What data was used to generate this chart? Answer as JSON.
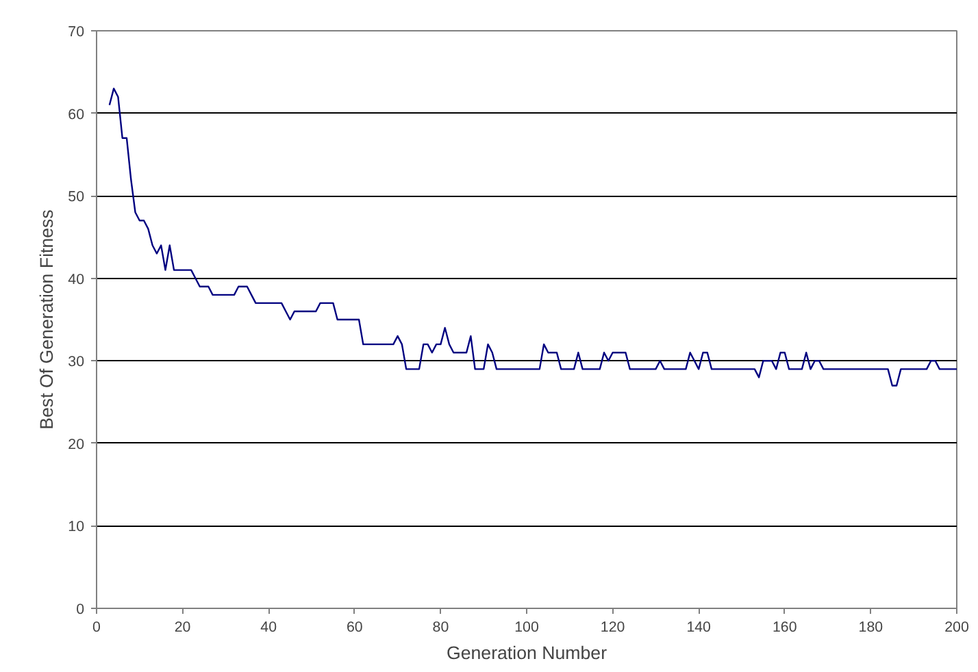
{
  "chart_data": {
    "type": "line",
    "xlabel": "Generation Number",
    "ylabel": "Best Of Generation Fitness",
    "xlim": [
      0,
      200
    ],
    "ylim": [
      0,
      70
    ],
    "xticks": [
      0,
      20,
      40,
      60,
      80,
      100,
      120,
      140,
      160,
      180,
      200
    ],
    "yticks": [
      0,
      10,
      20,
      30,
      40,
      50,
      60,
      70
    ],
    "grid": "y",
    "marker": "none",
    "line_style": "solid",
    "series": [
      {
        "color": "#000080",
        "x": [
          3,
          4,
          5,
          6,
          7,
          8,
          9,
          10,
          11,
          12,
          13,
          14,
          15,
          16,
          17,
          18,
          19,
          22,
          23,
          24,
          25,
          26,
          27,
          32,
          33,
          35,
          36,
          37,
          43,
          44,
          45,
          46,
          51,
          52,
          55,
          56,
          61,
          62,
          69,
          70,
          71,
          72,
          75,
          76,
          77,
          78,
          79,
          80,
          81,
          82,
          83,
          86,
          87,
          88,
          90,
          91,
          92,
          93,
          103,
          104,
          105,
          107,
          108,
          111,
          112,
          113,
          117,
          118,
          119,
          120,
          123,
          124,
          130,
          131,
          132,
          137,
          138,
          139,
          140,
          141,
          142,
          143,
          153,
          154,
          155,
          157,
          158,
          159,
          160,
          161,
          164,
          165,
          166,
          167,
          168,
          169,
          184,
          185,
          186,
          187,
          193,
          194,
          195,
          196,
          200
        ],
        "values": [
          61,
          63,
          62,
          57,
          57,
          52,
          48,
          47,
          47,
          46,
          44,
          43,
          44,
          41,
          44,
          41,
          41,
          41,
          40,
          39,
          39,
          39,
          38,
          38,
          39,
          39,
          38,
          37,
          37,
          36,
          35,
          36,
          36,
          37,
          37,
          35,
          35,
          32,
          32,
          33,
          32,
          29,
          29,
          32,
          32,
          31,
          32,
          32,
          34,
          32,
          31,
          31,
          33,
          29,
          29,
          32,
          31,
          29,
          29,
          32,
          31,
          31,
          29,
          29,
          31,
          29,
          29,
          31,
          30,
          31,
          31,
          29,
          29,
          30,
          29,
          29,
          31,
          30,
          29,
          31,
          31,
          29,
          29,
          28,
          30,
          30,
          29,
          31,
          31,
          29,
          29,
          31,
          29,
          30,
          30,
          29,
          29,
          27,
          27,
          29,
          29,
          30,
          30,
          29,
          29
        ]
      }
    ]
  }
}
